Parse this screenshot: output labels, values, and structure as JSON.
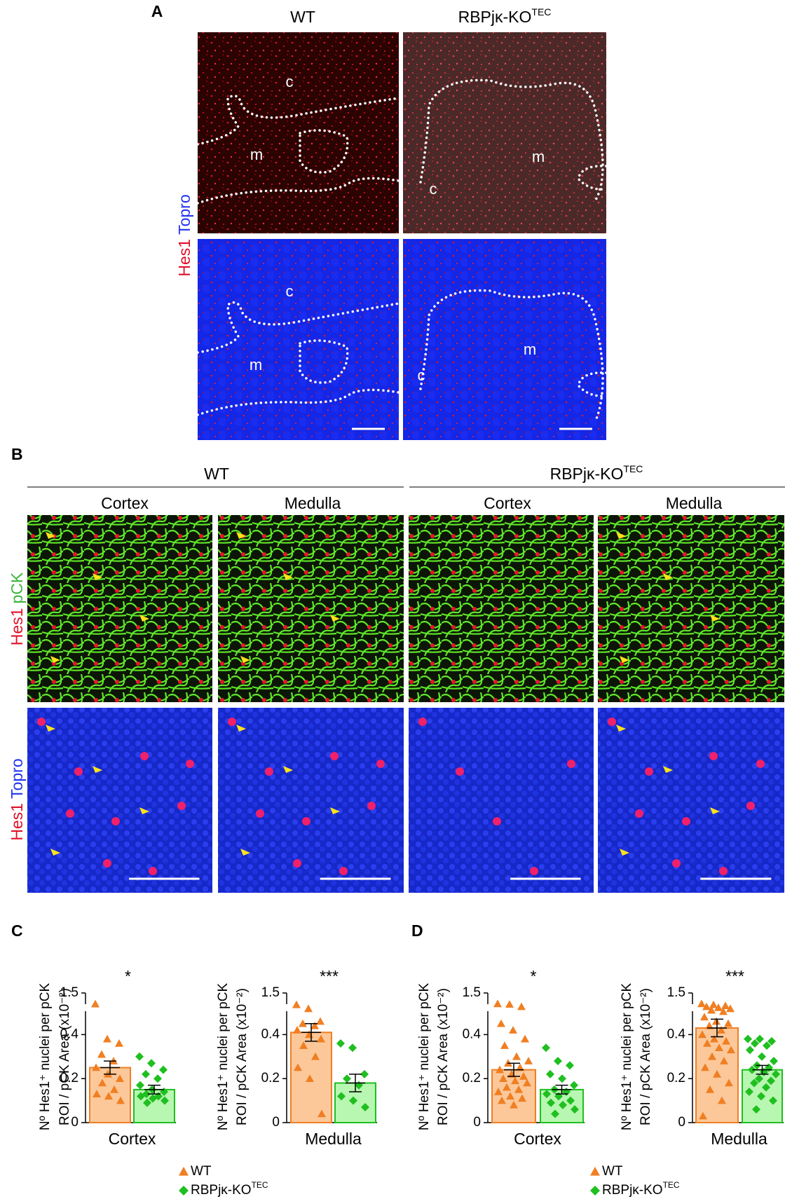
{
  "figure": {
    "panel_a": {
      "label": "A",
      "columns": [
        {
          "name": "WT"
        },
        {
          "name": "RBPjκ-KO",
          "superscript": "TEC"
        }
      ],
      "stain": [
        "Hes1",
        "Topro"
      ],
      "regions": [
        [
          "c",
          "m"
        ],
        [
          "m",
          "c"
        ],
        [
          "c",
          "m"
        ],
        [
          "m",
          "c"
        ]
      ]
    },
    "panel_b": {
      "label": "B",
      "groups": [
        {
          "name": "WT"
        },
        {
          "name": "RBPjκ-KO",
          "superscript": "TEC"
        }
      ],
      "columns": [
        "Cortex",
        "Medulla",
        "Cortex",
        "Medulla"
      ],
      "stains": [
        [
          "Hes1",
          "pCK"
        ],
        [
          "Hes1",
          "Topro"
        ]
      ]
    },
    "panel_c": {
      "label": "C"
    },
    "panel_d": {
      "label": "D"
    }
  },
  "chart_data": [
    {
      "type": "bar",
      "ylabel": [
        "Nº Hes1⁺ nuclei per pCK",
        "ROI / pCK Area (x10⁻²)"
      ],
      "categories": [
        "Cortex"
      ],
      "significance": "*",
      "ylim": [
        0,
        1.5
      ],
      "yticks": [
        0,
        0.2,
        0.4,
        1.5
      ],
      "axis_break": true,
      "series": [
        {
          "name": "WT",
          "color": "#f07f22",
          "fill": "#fcc89a",
          "marker": "triangle",
          "values": [
            0.25
          ],
          "errors": [
            0.03
          ],
          "points": [
            0.94,
            0.38,
            0.36,
            0.31,
            0.28,
            0.25,
            0.22,
            0.2,
            0.18,
            0.15,
            0.13,
            0.12,
            0.1
          ]
        },
        {
          "name": "RBPjκ-KO",
          "superscript": "TEC",
          "color": "#1fbf1f",
          "fill": "#b8f7b1",
          "marker": "diamond",
          "values": [
            0.15
          ],
          "errors": [
            0.02
          ],
          "points": [
            0.3,
            0.27,
            0.24,
            0.22,
            0.2,
            0.17,
            0.15,
            0.14,
            0.13,
            0.12,
            0.12,
            0.11,
            0.1,
            0.09
          ]
        }
      ]
    },
    {
      "type": "bar",
      "ylabel": [
        "Nº Hes1⁺ nuclei per pCK",
        "ROI / pCK Area (x10⁻²)"
      ],
      "categories": [
        "Medulla"
      ],
      "significance": "***",
      "ylim": [
        0,
        1.5
      ],
      "yticks": [
        0,
        0.2,
        0.4,
        1.5
      ],
      "axis_break": true,
      "series": [
        {
          "name": "WT",
          "color": "#f07f22",
          "fill": "#fcc89a",
          "marker": "triangle",
          "values": [
            0.41
          ],
          "errors": [
            0.04
          ],
          "points": [
            0.9,
            0.7,
            0.46,
            0.45,
            0.44,
            0.42,
            0.4,
            0.38,
            0.35,
            0.3,
            0.25,
            0.2,
            0.04
          ]
        },
        {
          "name": "RBPjκ-KO",
          "superscript": "TEC",
          "color": "#1fbf1f",
          "fill": "#b8f7b1",
          "marker": "diamond",
          "values": [
            0.18
          ],
          "errors": [
            0.04
          ],
          "points": [
            0.36,
            0.34,
            0.22,
            0.2,
            0.17,
            0.12,
            0.1,
            0.07
          ]
        }
      ]
    },
    {
      "type": "bar",
      "ylabel": [
        "Nº Hes1⁺ nuclei per pCK",
        "ROI / pCK Area (x10⁻²)"
      ],
      "categories": [
        "Cortex"
      ],
      "significance": "*",
      "ylim": [
        0,
        1.5
      ],
      "yticks": [
        0,
        0.2,
        0.4,
        1.5
      ],
      "axis_break": true,
      "series": [
        {
          "name": "WT",
          "color": "#f07f22",
          "fill": "#fcc89a",
          "marker": "triangle",
          "values": [
            0.24
          ],
          "errors": [
            0.03
          ],
          "points": [
            0.95,
            0.92,
            0.8,
            0.45,
            0.42,
            0.38,
            0.35,
            0.3,
            0.28,
            0.27,
            0.25,
            0.24,
            0.22,
            0.21,
            0.2,
            0.19,
            0.18,
            0.16,
            0.15,
            0.14,
            0.12,
            0.11,
            0.1,
            0.08
          ]
        },
        {
          "name": "RBPjκ-KO",
          "superscript": "TEC",
          "color": "#1fbf1f",
          "fill": "#b8f7b1",
          "marker": "diamond",
          "values": [
            0.15
          ],
          "errors": [
            0.02
          ],
          "points": [
            0.34,
            0.28,
            0.26,
            0.22,
            0.2,
            0.17,
            0.15,
            0.14,
            0.13,
            0.12,
            0.1,
            0.09,
            0.08,
            0.06,
            0.04
          ]
        }
      ]
    },
    {
      "type": "bar",
      "ylabel": [
        "Nº Hes1⁺ nuclei per pCK",
        "ROI / pCK Area (x10⁻²)"
      ],
      "categories": [
        "Medulla"
      ],
      "significance": "***",
      "ylim": [
        0,
        1.5
      ],
      "yticks": [
        0,
        0.2,
        0.4,
        1.5
      ],
      "axis_break": true,
      "series": [
        {
          "name": "WT",
          "color": "#f07f22",
          "fill": "#fcc89a",
          "marker": "triangle",
          "values": [
            0.43
          ],
          "errors": [
            0.04
          ],
          "points": [
            0.95,
            0.9,
            0.85,
            0.8,
            0.75,
            0.7,
            0.62,
            0.55,
            0.48,
            0.46,
            0.45,
            0.44,
            0.42,
            0.4,
            0.38,
            0.37,
            0.36,
            0.34,
            0.33,
            0.3,
            0.28,
            0.25,
            0.22,
            0.18,
            0.15,
            0.1,
            0.03
          ]
        },
        {
          "name": "RBPjκ-KO",
          "superscript": "TEC",
          "color": "#1fbf1f",
          "fill": "#b8f7b1",
          "marker": "diamond",
          "values": [
            0.24
          ],
          "errors": [
            0.02
          ],
          "points": [
            0.38,
            0.38,
            0.37,
            0.36,
            0.35,
            0.33,
            0.3,
            0.28,
            0.26,
            0.25,
            0.24,
            0.23,
            0.22,
            0.2,
            0.19,
            0.18,
            0.16,
            0.14,
            0.12,
            0.1,
            0.06
          ]
        }
      ]
    }
  ]
}
